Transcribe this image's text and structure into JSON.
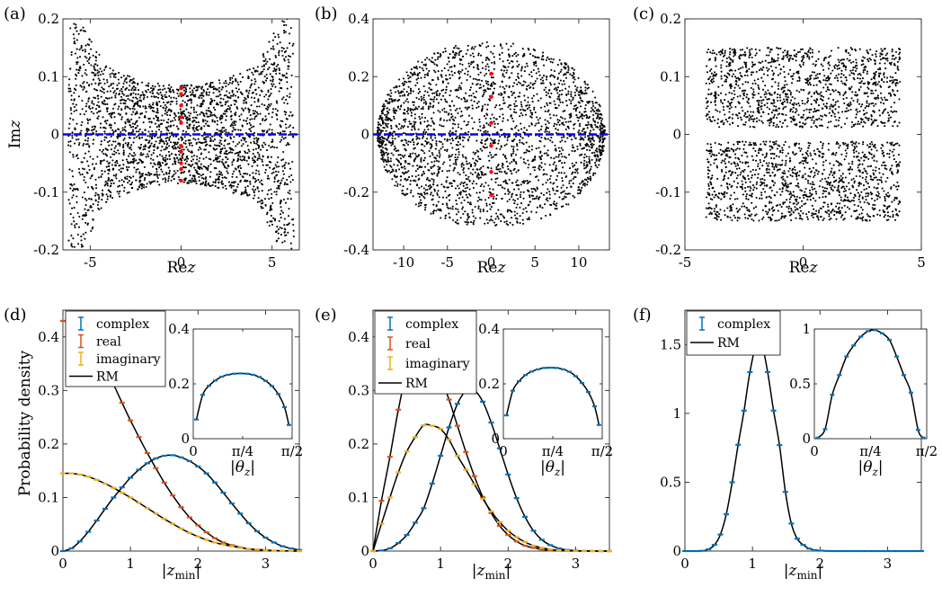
{
  "figure": {
    "colors": {
      "complex": "#0072BD",
      "real": "#D95319",
      "imaginary": "#EDB120",
      "rm": "#000000",
      "line": "#0000FF",
      "marker": "#FF0000",
      "dot": "#000000"
    }
  },
  "chart_data": [
    {
      "panel": "(a)",
      "type": "scatter",
      "xlabel": "Rez",
      "ylabel": "Imz",
      "xlim": [
        -6.5,
        6.5
      ],
      "ylim": [
        -0.2,
        0.2
      ],
      "xticks": [
        -5,
        0,
        5
      ],
      "xtick_labels": [
        "-5",
        "0",
        "5"
      ],
      "yticks": [
        -0.2,
        -0.1,
        0,
        0.1,
        0.2
      ],
      "ytick_labels": [
        "-0.2",
        "-0.1",
        "0",
        "0.1",
        "0.2"
      ],
      "real_axis_line": {
        "y": 0,
        "x": [
          -6.5,
          6.5
        ]
      },
      "highlight_points": [
        [
          0,
          -0.08
        ],
        [
          0,
          -0.06
        ],
        [
          0,
          -0.05
        ],
        [
          0,
          -0.03
        ],
        [
          0,
          -0.02
        ],
        [
          0,
          0.02
        ],
        [
          0,
          0.03
        ],
        [
          0,
          0.05
        ],
        [
          0,
          0.07
        ],
        [
          0,
          0.08
        ]
      ]
    },
    {
      "panel": "(b)",
      "type": "scatter",
      "xlabel": "Rez",
      "ylabel": "",
      "xlim": [
        -13.5,
        13.5
      ],
      "ylim": [
        -0.4,
        0.4
      ],
      "xticks": [
        -10,
        -5,
        0,
        5,
        10
      ],
      "xtick_labels": [
        "-10",
        "-5",
        "0",
        "5",
        "10"
      ],
      "yticks": [
        -0.4,
        -0.2,
        0,
        0.2,
        0.4
      ],
      "ytick_labels": [
        "-0.4",
        "-0.2",
        "0",
        "0.2",
        "0.4"
      ],
      "real_axis_line": {
        "y": 0,
        "x": [
          -13.5,
          13.5
        ]
      },
      "highlight_points": [
        [
          0,
          -0.21
        ],
        [
          0,
          -0.13
        ],
        [
          0,
          -0.04
        ],
        [
          0,
          0.04
        ],
        [
          0,
          0.13
        ],
        [
          0,
          0.21
        ]
      ]
    },
    {
      "panel": "(c)",
      "type": "scatter",
      "xlabel": "Rez",
      "ylabel": "",
      "xlim": [
        -5,
        5
      ],
      "ylim": [
        -0.2,
        0.2
      ],
      "xticks": [
        -5,
        0,
        5
      ],
      "xtick_labels": [
        "-5",
        "0",
        "5"
      ],
      "yticks": [
        -0.2,
        -0.1,
        0,
        0.1,
        0.2
      ],
      "ytick_labels": [
        "-0.2",
        "-0.1",
        "0",
        "0.1",
        "0.2"
      ]
    },
    {
      "panel": "(d)",
      "type": "line",
      "xlabel": "|z_min|",
      "ylabel": "Probability density",
      "xlim": [
        0,
        3.5
      ],
      "ylim": [
        0,
        0.45
      ],
      "xticks": [
        0,
        1,
        2,
        3
      ],
      "xtick_labels": [
        "0",
        "1",
        "2",
        "3"
      ],
      "yticks": [
        0,
        0.1,
        0.2,
        0.3,
        0.4
      ],
      "ytick_labels": [
        "0",
        "0.1",
        "0.2",
        "0.3",
        "0.4"
      ],
      "legend": [
        "complex",
        "real",
        "imaginary",
        "RM"
      ],
      "series": [
        {
          "name": "complex",
          "x": [
            0,
            0.125,
            0.25,
            0.375,
            0.5,
            0.625,
            0.75,
            0.875,
            1,
            1.125,
            1.25,
            1.375,
            1.5,
            1.625,
            1.75,
            1.875,
            2,
            2.125,
            2.25,
            2.375,
            2.5,
            2.625,
            2.75,
            2.875,
            3,
            3.125,
            3.25,
            3.375,
            3.5
          ],
          "values": [
            0,
            0.005,
            0.018,
            0.036,
            0.057,
            0.079,
            0.1,
            0.119,
            0.137,
            0.152,
            0.164,
            0.173,
            0.178,
            0.179,
            0.175,
            0.168,
            0.158,
            0.145,
            0.128,
            0.109,
            0.089,
            0.07,
            0.052,
            0.037,
            0.025,
            0.016,
            0.009,
            0.005,
            0.002
          ]
        },
        {
          "name": "real",
          "x": [
            0,
            0.125,
            0.25,
            0.375,
            0.5,
            0.625,
            0.75,
            0.875,
            1,
            1.125,
            1.25,
            1.375,
            1.5,
            1.625,
            1.75,
            1.875,
            2,
            2.125,
            2.25,
            2.375,
            2.5,
            2.625,
            2.75,
            2.875,
            3,
            3.125,
            3.25,
            3.375,
            3.5
          ],
          "values": [
            0.43,
            0.425,
            0.415,
            0.396,
            0.371,
            0.342,
            0.311,
            0.277,
            0.244,
            0.213,
            0.183,
            0.155,
            0.128,
            0.104,
            0.082,
            0.063,
            0.048,
            0.035,
            0.024,
            0.016,
            0.011,
            0.007,
            0.004,
            0.002,
            0.001,
            0.0006,
            0.0003,
            0.0001,
            0
          ]
        },
        {
          "name": "imaginary",
          "x": [
            0,
            0.125,
            0.25,
            0.375,
            0.5,
            0.625,
            0.75,
            0.875,
            1,
            1.125,
            1.25,
            1.375,
            1.5,
            1.625,
            1.75,
            1.875,
            2,
            2.125,
            2.25,
            2.375,
            2.5,
            2.625,
            2.75,
            2.875,
            3,
            3.125,
            3.25,
            3.375,
            3.5
          ],
          "values": [
            0.145,
            0.145,
            0.143,
            0.139,
            0.133,
            0.126,
            0.118,
            0.109,
            0.1,
            0.09,
            0.08,
            0.07,
            0.06,
            0.051,
            0.042,
            0.034,
            0.027,
            0.021,
            0.016,
            0.012,
            0.009,
            0.006,
            0.004,
            0.003,
            0.002,
            0.001,
            0.0006,
            0.0003,
            0
          ]
        }
      ],
      "inset": {
        "type": "line",
        "xlabel": "|θ_z|",
        "xlim": [
          0,
          1.5708
        ],
        "ylim": [
          0,
          0.4
        ],
        "xticks": [
          0,
          0.7854,
          1.5708
        ],
        "xtick_labels": [
          "0",
          "π/4",
          "π/2"
        ],
        "yticks": [
          0,
          0.2,
          0.4
        ],
        "ytick_labels": [
          "0",
          "0.2",
          "0.4"
        ],
        "series": [
          {
            "name": "complex",
            "x": [
              0.05,
              0.15,
              0.25,
              0.35,
              0.45,
              0.55,
              0.65,
              0.75,
              0.85,
              0.95,
              1.05,
              1.15,
              1.25,
              1.35,
              1.45,
              1.52
            ],
            "values": [
              0.07,
              0.16,
              0.193,
              0.212,
              0.226,
              0.233,
              0.237,
              0.238,
              0.237,
              0.233,
              0.225,
              0.211,
              0.192,
              0.163,
              0.115,
              0.05
            ]
          }
        ]
      }
    },
    {
      "panel": "(e)",
      "type": "line",
      "xlabel": "|z_min|",
      "ylabel": "",
      "xlim": [
        0,
        3.5
      ],
      "ylim": [
        0,
        0.45
      ],
      "xticks": [
        0,
        1,
        2,
        3
      ],
      "xtick_labels": [
        "0",
        "1",
        "2",
        "3"
      ],
      "yticks": [
        0,
        0.1,
        0.2,
        0.3,
        0.4
      ],
      "ytick_labels": [
        "0",
        "0.1",
        "0.2",
        "0.3",
        "0.4"
      ],
      "legend": [
        "complex",
        "real",
        "imaginary",
        "RM"
      ],
      "series": [
        {
          "name": "complex",
          "x": [
            0,
            0.125,
            0.25,
            0.375,
            0.5,
            0.625,
            0.75,
            0.875,
            1,
            1.125,
            1.25,
            1.375,
            1.5,
            1.625,
            1.75,
            1.875,
            2,
            2.125,
            2.25,
            2.375,
            2.5,
            2.625,
            2.75,
            2.875,
            3,
            3.125,
            3.25,
            3.375,
            3.5
          ],
          "values": [
            0,
            0.001,
            0.005,
            0.015,
            0.03,
            0.053,
            0.08,
            0.126,
            0.178,
            0.231,
            0.275,
            0.299,
            0.3,
            0.279,
            0.24,
            0.192,
            0.143,
            0.099,
            0.064,
            0.038,
            0.021,
            0.011,
            0.005,
            0.002,
            0.001,
            0.0003,
            0.0001,
            0,
            0
          ]
        },
        {
          "name": "real",
          "x": [
            0,
            0.125,
            0.25,
            0.375,
            0.5,
            0.625,
            0.75,
            0.875,
            1,
            1.125,
            1.25,
            1.375,
            1.5,
            1.625,
            1.75,
            1.875,
            2,
            2.125,
            2.25,
            2.375,
            2.5,
            2.625,
            2.75,
            2.875,
            3,
            3.125,
            3.25,
            3.375,
            3.5
          ],
          "values": [
            0,
            0.094,
            0.176,
            0.264,
            0.334,
            0.359,
            0.366,
            0.351,
            0.325,
            0.283,
            0.234,
            0.185,
            0.14,
            0.101,
            0.071,
            0.047,
            0.03,
            0.018,
            0.01,
            0.006,
            0.003,
            0.0015,
            0.0007,
            0.0003,
            0.0001,
            0,
            0,
            0,
            0
          ]
        },
        {
          "name": "imaginary",
          "x": [
            0,
            0.125,
            0.25,
            0.375,
            0.5,
            0.625,
            0.75,
            0.875,
            1,
            1.125,
            1.25,
            1.375,
            1.5,
            1.625,
            1.75,
            1.875,
            2,
            2.125,
            2.25,
            2.375,
            2.5,
            2.625,
            2.75,
            2.875,
            3,
            3.125,
            3.25,
            3.375,
            3.5
          ],
          "values": [
            0,
            0.051,
            0.1,
            0.147,
            0.186,
            0.213,
            0.235,
            0.234,
            0.228,
            0.208,
            0.178,
            0.152,
            0.125,
            0.098,
            0.074,
            0.054,
            0.038,
            0.026,
            0.017,
            0.01,
            0.006,
            0.003,
            0.0016,
            0.0008,
            0.0004,
            0.0002,
            0,
            0,
            0
          ]
        }
      ],
      "inset": {
        "type": "line",
        "xlabel": "|θ_z|",
        "xlim": [
          0,
          1.5708
        ],
        "ylim": [
          0,
          0.4
        ],
        "xticks": [
          0,
          0.7854,
          1.5708
        ],
        "xtick_labels": [
          "0",
          "π/4",
          "π/2"
        ],
        "yticks": [
          0,
          0.2,
          0.4
        ],
        "ytick_labels": [
          "0",
          "0.2",
          "0.4"
        ],
        "series": [
          {
            "name": "complex",
            "x": [
              0.05,
              0.15,
              0.25,
              0.35,
              0.45,
              0.55,
              0.65,
              0.75,
              0.85,
              0.95,
              1.05,
              1.15,
              1.25,
              1.35,
              1.45,
              1.52
            ],
            "values": [
              0.085,
              0.175,
              0.21,
              0.232,
              0.245,
              0.253,
              0.258,
              0.259,
              0.258,
              0.253,
              0.244,
              0.228,
              0.203,
              0.17,
              0.118,
              0.05
            ]
          }
        ]
      }
    },
    {
      "panel": "(f)",
      "type": "line",
      "xlabel": "|z_min|",
      "ylabel": "",
      "xlim": [
        0,
        3.5
      ],
      "ylim": [
        0,
        1.75
      ],
      "xticks": [
        0,
        1,
        2,
        3
      ],
      "xtick_labels": [
        "0",
        "1",
        "2",
        "3"
      ],
      "yticks": [
        0,
        0.5,
        1,
        1.5
      ],
      "ytick_labels": [
        "0",
        "0.5",
        "1",
        "1.5"
      ],
      "legend": [
        "complex",
        "RM"
      ],
      "series": [
        {
          "name": "complex",
          "x": [
            0,
            0.0875,
            0.175,
            0.2625,
            0.35,
            0.4375,
            0.525,
            0.6125,
            0.7,
            0.7875,
            0.875,
            0.9625,
            1.05,
            1.1375,
            1.225,
            1.3125,
            1.4,
            1.4875,
            1.575,
            1.6625,
            1.75,
            1.8375,
            1.925,
            2.0125,
            2.1,
            2.1875,
            2.275,
            2.3625,
            2.45,
            2.5375,
            2.625,
            2.7125,
            2.8,
            2.8875,
            2.975,
            3.0625,
            3.15,
            3.2375,
            3.325,
            3.4125,
            3.5
          ],
          "values": [
            0,
            0,
            0,
            0.002,
            0.013,
            0.045,
            0.12,
            0.267,
            0.5,
            0.772,
            1.02,
            1.3,
            1.49,
            1.5,
            1.3,
            1.02,
            0.77,
            0.43,
            0.2,
            0.09,
            0.045,
            0.018,
            0.007,
            0.003,
            0.001,
            0,
            0,
            0,
            0,
            0,
            0,
            0,
            0,
            0,
            0,
            0,
            0,
            0,
            0,
            0,
            0
          ]
        }
      ],
      "inset": {
        "type": "line",
        "xlabel": "|θ_z|",
        "xlim": [
          0,
          1.5708
        ],
        "ylim": [
          0,
          1
        ],
        "xticks": [
          0,
          0.7854,
          1.5708
        ],
        "xtick_labels": [
          "0",
          "π/4",
          "π/2"
        ],
        "yticks": [
          0,
          0.5,
          1
        ],
        "ytick_labels": [
          "0",
          "0.5",
          "1"
        ],
        "series": [
          {
            "name": "complex",
            "x": [
              0.05,
              0.15,
              0.25,
              0.35,
              0.45,
              0.55,
              0.65,
              0.75,
              0.85,
              0.95,
              1.05,
              1.15,
              1.25,
              1.35,
              1.45,
              1.52
            ],
            "values": [
              0.01,
              0.087,
              0.4,
              0.58,
              0.75,
              0.85,
              0.93,
              0.98,
              0.99,
              0.96,
              0.9,
              0.75,
              0.58,
              0.42,
              0.08,
              0.01
            ]
          }
        ]
      }
    }
  ]
}
